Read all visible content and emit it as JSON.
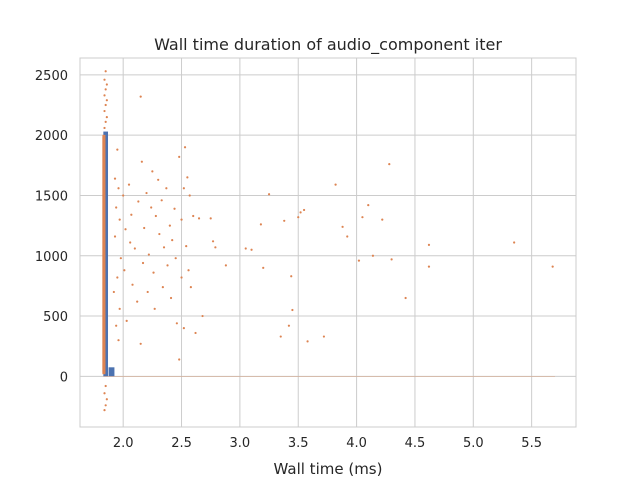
{
  "chart_data": {
    "type": "scatter",
    "title": "Wall time duration of audio_component iter",
    "xlabel": "Wall time (ms)",
    "ylabel": "",
    "xlim": [
      1.63,
      5.88
    ],
    "ylim": [
      -420,
      2640
    ],
    "x_ticks": [
      2.0,
      2.5,
      3.0,
      3.5,
      4.0,
      4.5,
      5.0,
      5.5
    ],
    "x_tick_labels": [
      "2.0",
      "2.5",
      "3.0",
      "3.5",
      "4.0",
      "4.5",
      "5.0",
      "5.5"
    ],
    "y_ticks": [
      0,
      500,
      1000,
      1500,
      2000,
      2500
    ],
    "y_tick_labels": [
      "0",
      "500",
      "1000",
      "1500",
      "2000",
      "2500"
    ],
    "grid": true,
    "colors": {
      "blue": "#4c72b0",
      "orange": "#dd8452",
      "grid": "#cccccc"
    },
    "series": [
      {
        "kind": "rect",
        "color": "#4c72b0",
        "points": [
          {
            "x": [
              1.83,
              1.87
            ],
            "y": [
              0,
              2030
            ]
          },
          {
            "x": [
              1.875,
              1.925
            ],
            "y": [
              0,
              75
            ]
          }
        ]
      },
      {
        "kind": "hline",
        "color": "#dd8452",
        "y": 0,
        "x_range": [
          1.83,
          5.7
        ]
      },
      {
        "kind": "points",
        "color": "#dd8452",
        "points": [
          {
            "x": 1.85,
            "y": 2530
          },
          {
            "x": 1.84,
            "y": 2460
          },
          {
            "x": 1.86,
            "y": 2420
          },
          {
            "x": 1.85,
            "y": 2380
          },
          {
            "x": 1.84,
            "y": 2330
          },
          {
            "x": 1.86,
            "y": 2290
          },
          {
            "x": 1.85,
            "y": 2250
          },
          {
            "x": 1.84,
            "y": 2200
          },
          {
            "x": 1.86,
            "y": 2150
          },
          {
            "x": 1.85,
            "y": 2110
          },
          {
            "x": 1.84,
            "y": 2060
          },
          {
            "x": 1.85,
            "y": -80
          },
          {
            "x": 1.84,
            "y": -140
          },
          {
            "x": 1.86,
            "y": -190
          },
          {
            "x": 1.85,
            "y": -240
          },
          {
            "x": 1.84,
            "y": -280
          },
          {
            "x": 1.95,
            "y": 1880
          },
          {
            "x": 1.93,
            "y": 1640
          },
          {
            "x": 1.96,
            "y": 1560
          },
          {
            "x": 1.94,
            "y": 1400
          },
          {
            "x": 1.97,
            "y": 1300
          },
          {
            "x": 1.93,
            "y": 1160
          },
          {
            "x": 1.98,
            "y": 980
          },
          {
            "x": 1.95,
            "y": 820
          },
          {
            "x": 1.92,
            "y": 700
          },
          {
            "x": 1.97,
            "y": 560
          },
          {
            "x": 1.94,
            "y": 420
          },
          {
            "x": 1.96,
            "y": 300
          },
          {
            "x": 2.0,
            "y": 1500
          },
          {
            "x": 2.02,
            "y": 1220
          },
          {
            "x": 2.01,
            "y": 880
          },
          {
            "x": 2.03,
            "y": 460
          },
          {
            "x": 2.05,
            "y": 1590
          },
          {
            "x": 2.06,
            "y": 1110
          },
          {
            "x": 2.07,
            "y": 1340
          },
          {
            "x": 2.08,
            "y": 760
          },
          {
            "x": 2.1,
            "y": 1060
          },
          {
            "x": 2.12,
            "y": 620
          },
          {
            "x": 2.13,
            "y": 1450
          },
          {
            "x": 2.15,
            "y": 2320
          },
          {
            "x": 2.16,
            "y": 1780
          },
          {
            "x": 2.15,
            "y": 270
          },
          {
            "x": 2.17,
            "y": 940
          },
          {
            "x": 2.18,
            "y": 1230
          },
          {
            "x": 2.2,
            "y": 1520
          },
          {
            "x": 2.21,
            "y": 700
          },
          {
            "x": 2.22,
            "y": 1010
          },
          {
            "x": 2.24,
            "y": 1400
          },
          {
            "x": 2.25,
            "y": 1700
          },
          {
            "x": 2.26,
            "y": 860
          },
          {
            "x": 2.27,
            "y": 560
          },
          {
            "x": 2.28,
            "y": 1330
          },
          {
            "x": 2.3,
            "y": 1630
          },
          {
            "x": 2.31,
            "y": 1180
          },
          {
            "x": 2.33,
            "y": 1460
          },
          {
            "x": 2.34,
            "y": 740
          },
          {
            "x": 2.35,
            "y": 1070
          },
          {
            "x": 2.37,
            "y": 1560
          },
          {
            "x": 2.38,
            "y": 920
          },
          {
            "x": 2.4,
            "y": 1250
          },
          {
            "x": 2.41,
            "y": 650
          },
          {
            "x": 2.42,
            "y": 1130
          },
          {
            "x": 2.44,
            "y": 1390
          },
          {
            "x": 2.45,
            "y": 980
          },
          {
            "x": 2.46,
            "y": 440
          },
          {
            "x": 2.48,
            "y": 1820
          },
          {
            "x": 2.48,
            "y": 140
          },
          {
            "x": 2.5,
            "y": 1300
          },
          {
            "x": 2.5,
            "y": 820
          },
          {
            "x": 2.52,
            "y": 1560
          },
          {
            "x": 2.52,
            "y": 400
          },
          {
            "x": 2.53,
            "y": 1900
          },
          {
            "x": 2.54,
            "y": 1080
          },
          {
            "x": 2.55,
            "y": 1650
          },
          {
            "x": 2.56,
            "y": 880
          },
          {
            "x": 2.57,
            "y": 1500
          },
          {
            "x": 2.58,
            "y": 740
          },
          {
            "x": 2.6,
            "y": 1330
          },
          {
            "x": 2.62,
            "y": 360
          },
          {
            "x": 2.65,
            "y": 1310
          },
          {
            "x": 2.68,
            "y": 500
          },
          {
            "x": 2.75,
            "y": 1310
          },
          {
            "x": 2.77,
            "y": 1120
          },
          {
            "x": 2.79,
            "y": 1070
          },
          {
            "x": 2.88,
            "y": 920
          },
          {
            "x": 3.05,
            "y": 1060
          },
          {
            "x": 3.1,
            "y": 1050
          },
          {
            "x": 3.18,
            "y": 1260
          },
          {
            "x": 3.2,
            "y": 900
          },
          {
            "x": 3.25,
            "y": 1510
          },
          {
            "x": 3.35,
            "y": 330
          },
          {
            "x": 3.38,
            "y": 1290
          },
          {
            "x": 3.42,
            "y": 420
          },
          {
            "x": 3.44,
            "y": 830
          },
          {
            "x": 3.45,
            "y": 550
          },
          {
            "x": 3.5,
            "y": 1320
          },
          {
            "x": 3.52,
            "y": 1360
          },
          {
            "x": 3.55,
            "y": 1380
          },
          {
            "x": 3.58,
            "y": 290
          },
          {
            "x": 3.72,
            "y": 330
          },
          {
            "x": 3.82,
            "y": 1590
          },
          {
            "x": 3.88,
            "y": 1240
          },
          {
            "x": 3.92,
            "y": 1160
          },
          {
            "x": 4.02,
            "y": 960
          },
          {
            "x": 4.05,
            "y": 1320
          },
          {
            "x": 4.1,
            "y": 1420
          },
          {
            "x": 4.14,
            "y": 1000
          },
          {
            "x": 4.22,
            "y": 1300
          },
          {
            "x": 4.28,
            "y": 1760
          },
          {
            "x": 4.3,
            "y": 970
          },
          {
            "x": 4.42,
            "y": 650
          },
          {
            "x": 4.62,
            "y": 1090
          },
          {
            "x": 4.62,
            "y": 910
          },
          {
            "x": 5.35,
            "y": 1110
          },
          {
            "x": 5.68,
            "y": 910
          }
        ]
      }
    ]
  }
}
